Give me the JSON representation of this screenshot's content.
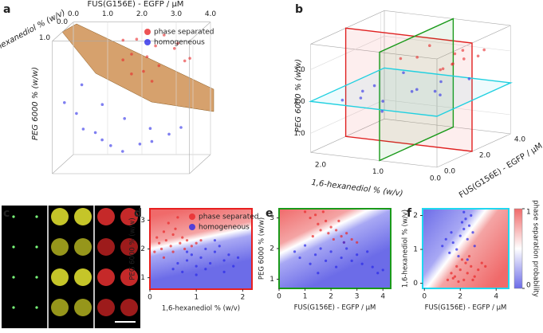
{
  "chart_data": [
    {
      "panel": "a",
      "type": "scatter3d",
      "xlabel": "FUS(G156E) - EGFP / µM",
      "ylabel": "1,6-hexanediol % (w/v)",
      "zlabel": "PEG 6000 % (w/w)",
      "xlim": [
        0,
        4
      ],
      "ylim": [
        0,
        1.2
      ],
      "zlim": [
        0.6,
        3.8
      ],
      "xticks": [
        {
          "value": 0,
          "label": "0.0"
        },
        {
          "value": 1,
          "label": "1.0"
        },
        {
          "value": 2,
          "label": "2.0"
        },
        {
          "value": 3,
          "label": "3.0"
        },
        {
          "value": 4,
          "label": "4.0"
        }
      ],
      "yticks": [
        {
          "value": 0,
          "label": "0.0"
        },
        {
          "value": 1,
          "label": "1.0"
        }
      ],
      "series": [
        {
          "name": "phase separated",
          "color": "#e8282a",
          "x": [
            1.5,
            1.8,
            2.0,
            2.2,
            2.5,
            2.7,
            3.0,
            3.2,
            3.5,
            2.3,
            1.9,
            2.8,
            3.3,
            2.6,
            1.6
          ],
          "y": [
            0.1,
            0.2,
            0.3,
            0.1,
            0.2,
            0.4,
            0.1,
            0.3,
            0.2,
            0.5,
            0.4,
            0.3,
            0.1,
            0.6,
            0.3
          ],
          "z": [
            3.4,
            3.1,
            3.5,
            3.0,
            3.3,
            2.9,
            3.2,
            3.4,
            3.0,
            2.8,
            2.7,
            3.6,
            2.9,
            2.6,
            3.0
          ]
        },
        {
          "name": "homogeneous",
          "color": "#2a2ae8",
          "x": [
            0.2,
            0.5,
            0.8,
            1.0,
            1.3,
            1.6,
            2.0,
            2.4,
            2.8,
            3.2,
            3.6,
            1.1,
            1.8,
            2.6,
            0.4
          ],
          "y": [
            0.9,
            0.8,
            1.0,
            0.7,
            0.9,
            1.0,
            1.1,
            0.9,
            1.0,
            0.8,
            0.9,
            0.5,
            0.6,
            0.7,
            0.3
          ],
          "z": [
            2.2,
            1.9,
            1.6,
            1.4,
            1.3,
            1.2,
            1.1,
            1.2,
            1.3,
            1.4,
            1.6,
            2.0,
            1.7,
            1.5,
            2.4
          ]
        }
      ],
      "legend": "upper right"
    },
    {
      "panel": "b",
      "type": "scatter3d",
      "xlabel": "FUS(G156E) - EGFP / µM",
      "ylabel": "1,6-hexanediol % (w/v)",
      "zlabel": "PEG 6000 % (w/w)",
      "xlim": [
        0,
        4.2
      ],
      "ylim": [
        0,
        2.2
      ],
      "zlim": [
        0.4,
        3.8
      ],
      "xticks": [
        {
          "value": 0,
          "label": "0.0"
        },
        {
          "value": 2,
          "label": "2.0"
        },
        {
          "value": 4,
          "label": "4.0"
        }
      ],
      "yticks": [
        {
          "value": 0,
          "label": "0.0"
        },
        {
          "value": 1,
          "label": "1.0"
        },
        {
          "value": 2,
          "label": "2.0"
        }
      ],
      "zticks": [
        {
          "value": 1,
          "label": "1.0"
        },
        {
          "value": 2,
          "label": "2.0"
        },
        {
          "value": 3,
          "label": "3.0"
        }
      ],
      "planes": [
        {
          "axis": "x",
          "value": 2,
          "color": "#e02020"
        },
        {
          "axis": "y",
          "value": 1,
          "color": "#1a9a1a"
        },
        {
          "axis": "z",
          "value": 2,
          "color": "#20d0e0"
        }
      ],
      "series": [
        {
          "color": "#e8282a",
          "x": [
            1.0,
            1.5,
            2.0,
            2.5,
            3.0,
            3.5,
            4.0,
            1.2,
            2.2,
            3.2,
            2.8,
            1.8
          ],
          "y": [
            0.2,
            0.4,
            0.3,
            0.5,
            0.2,
            0.6,
            0.4,
            1.0,
            0.8,
            0.7,
            1.2,
            0.1
          ],
          "z": [
            3.2,
            3.0,
            3.4,
            2.9,
            3.1,
            2.8,
            3.0,
            3.3,
            3.5,
            2.7,
            2.9,
            3.6
          ]
        },
        {
          "color": "#2a2ae8",
          "x": [
            0.5,
            1.0,
            1.5,
            2.0,
            2.5,
            3.0,
            3.5,
            0.8,
            1.8,
            2.8,
            3.8,
            2.2,
            1.2
          ],
          "y": [
            1.8,
            1.6,
            1.4,
            1.7,
            1.2,
            1.5,
            1.0,
            1.2,
            0.9,
            0.8,
            0.6,
            2.0,
            0.4
          ],
          "z": [
            2.0,
            2.2,
            1.8,
            2.1,
            1.9,
            2.3,
            2.0,
            1.7,
            2.2,
            1.8,
            2.1,
            1.6,
            2.4
          ]
        }
      ]
    },
    {
      "panel": "c",
      "type": "image"
    },
    {
      "panel": "d",
      "type": "scatter",
      "xlabel": "1,6-hexanediol % (w/v)",
      "ylabel": "PEG 6000 % (w/w)",
      "frame_color": "#e82020",
      "xlim": [
        0,
        2.2
      ],
      "ylim": [
        0.6,
        3.4
      ],
      "xticks": [
        0,
        1,
        2
      ],
      "yticks": [
        1,
        2,
        3
      ],
      "series": [
        {
          "name": "phase separated",
          "color": "#e8282a",
          "x": [
            0.1,
            0.2,
            0.25,
            0.3,
            0.35,
            0.4,
            0.45,
            0.5,
            0.55,
            0.6,
            0.65,
            0.7,
            0.75,
            0.8,
            0.9,
            1.0,
            1.1,
            0.3,
            0.5,
            0.15
          ],
          "y": [
            1.9,
            2.2,
            2.0,
            2.6,
            2.3,
            2.9,
            2.1,
            2.5,
            2.7,
            3.1,
            2.2,
            2.4,
            2.0,
            2.3,
            2.1,
            2.2,
            2.3,
            1.7,
            1.9,
            2.4
          ]
        },
        {
          "name": "homogeneous",
          "color": "#2a2ae8",
          "x": [
            0.5,
            0.6,
            0.7,
            0.8,
            0.9,
            1.0,
            1.1,
            1.2,
            1.3,
            1.4,
            1.5,
            1.6,
            1.7,
            1.8,
            1.9,
            1.0,
            1.2,
            1.4,
            0.8,
            1.6
          ],
          "y": [
            1.3,
            1.5,
            1.2,
            1.6,
            1.8,
            1.4,
            1.7,
            2.0,
            1.5,
            1.9,
            2.1,
            1.6,
            1.8,
            1.4,
            1.7,
            1.1,
            1.3,
            2.3,
            1.9,
            1.2
          ]
        }
      ],
      "legend": "upper right"
    },
    {
      "panel": "e",
      "type": "scatter",
      "xlabel": "FUS(G156E) - EGFP / µM",
      "ylabel": "PEG 6000 % (w/w)",
      "frame_color": "#1a9a1a",
      "xlim": [
        0,
        4.3
      ],
      "ylim": [
        0.7,
        3.3
      ],
      "xticks": [
        0,
        1,
        2,
        3,
        4
      ],
      "yticks": [
        1,
        2,
        3
      ],
      "series": [
        {
          "color": "#e8282a",
          "x": [
            1.0,
            1.2,
            1.4,
            1.5,
            1.6,
            1.8,
            1.9,
            2.0,
            2.1,
            2.2,
            2.4,
            2.5,
            2.6,
            2.8,
            3.0,
            1.3,
            1.7,
            2.3
          ],
          "y": [
            3.2,
            3.0,
            3.1,
            2.8,
            2.6,
            2.9,
            2.5,
            2.7,
            2.3,
            2.6,
            2.4,
            2.2,
            2.5,
            2.3,
            2.2,
            2.4,
            3.2,
            2.9
          ]
        },
        {
          "color": "#2a2ae8",
          "x": [
            0.6,
            0.8,
            1.0,
            1.2,
            1.4,
            1.6,
            1.8,
            2.0,
            2.2,
            2.4,
            2.6,
            2.8,
            3.0,
            3.2,
            3.4,
            3.6,
            3.8,
            4.0,
            1.5,
            2.5
          ],
          "y": [
            1.9,
            1.7,
            2.1,
            1.5,
            1.8,
            2.0,
            1.6,
            1.9,
            1.4,
            1.7,
            2.0,
            1.6,
            1.8,
            1.5,
            1.9,
            1.4,
            1.2,
            1.3,
            1.2,
            2.2
          ]
        }
      ]
    },
    {
      "panel": "f",
      "type": "scatter",
      "xlabel": "FUS(G156E) - EGFP / µM",
      "ylabel": "1,6-hexanediol % (w/v)",
      "frame_color": "#20d8f0",
      "xlim": [
        -0.1,
        4.7
      ],
      "ylim": [
        -0.15,
        2.2
      ],
      "xticks": [
        0,
        2,
        4
      ],
      "yticks": [
        0,
        1,
        2
      ],
      "colorbar": {
        "label": "phase separation probability",
        "lim": [
          0,
          1
        ],
        "ticks": [
          0,
          1
        ]
      },
      "series": [
        {
          "color": "#2a2ae8",
          "x": [
            1.0,
            1.2,
            1.4,
            1.5,
            1.6,
            1.8,
            2.0,
            2.1,
            2.2,
            2.3,
            2.4,
            2.5,
            2.6,
            2.7,
            2.8,
            1.9,
            2.2,
            2.4
          ],
          "y": [
            1.1,
            1.3,
            0.9,
            1.5,
            1.2,
            1.0,
            1.4,
            1.8,
            1.6,
            1.9,
            1.3,
            1.7,
            2.0,
            1.5,
            1.1,
            0.8,
            2.1,
            0.7
          ]
        },
        {
          "color": "#e8282a",
          "x": [
            1.3,
            1.5,
            1.7,
            1.8,
            2.0,
            2.1,
            2.2,
            2.3,
            2.4,
            2.6,
            2.8,
            3.0,
            3.2,
            3.4,
            1.9,
            2.5,
            2.7,
            1.6
          ],
          "y": [
            0.1,
            0.3,
            0.2,
            0.5,
            0.4,
            0.7,
            0.1,
            0.6,
            0.3,
            0.5,
            0.2,
            0.4,
            0.6,
            0.5,
            0.05,
            0.8,
            0.1,
            0.15
          ]
        }
      ]
    }
  ]
}
